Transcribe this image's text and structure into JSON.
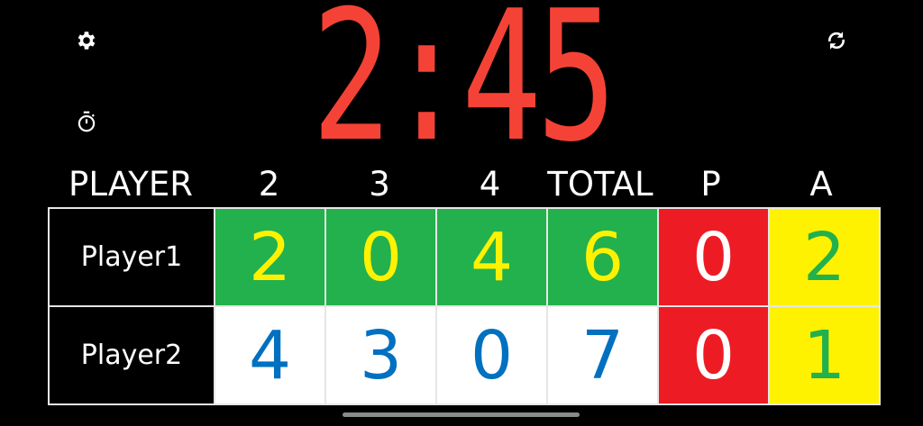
{
  "toolbar": {
    "settings_icon": "gear-icon",
    "timer_icon": "stopwatch-icon",
    "reset_icon": "refresh-icon"
  },
  "clock": {
    "time": "2:45",
    "color": "#f44336"
  },
  "headers": [
    "PLAYER",
    "2",
    "3",
    "4",
    "TOTAL",
    "P",
    "A"
  ],
  "colors": {
    "green": "#22b14c",
    "yellow": "#fff200",
    "red": "#ed1c24",
    "blue": "#0070c0",
    "white": "#ffffff"
  },
  "rows": [
    {
      "name": "Player1",
      "scores": [
        "2",
        "0",
        "4",
        "6"
      ],
      "p": "0",
      "a": "2"
    },
    {
      "name": "Player2",
      "scores": [
        "4",
        "3",
        "0",
        "7"
      ],
      "p": "0",
      "a": "1"
    }
  ]
}
